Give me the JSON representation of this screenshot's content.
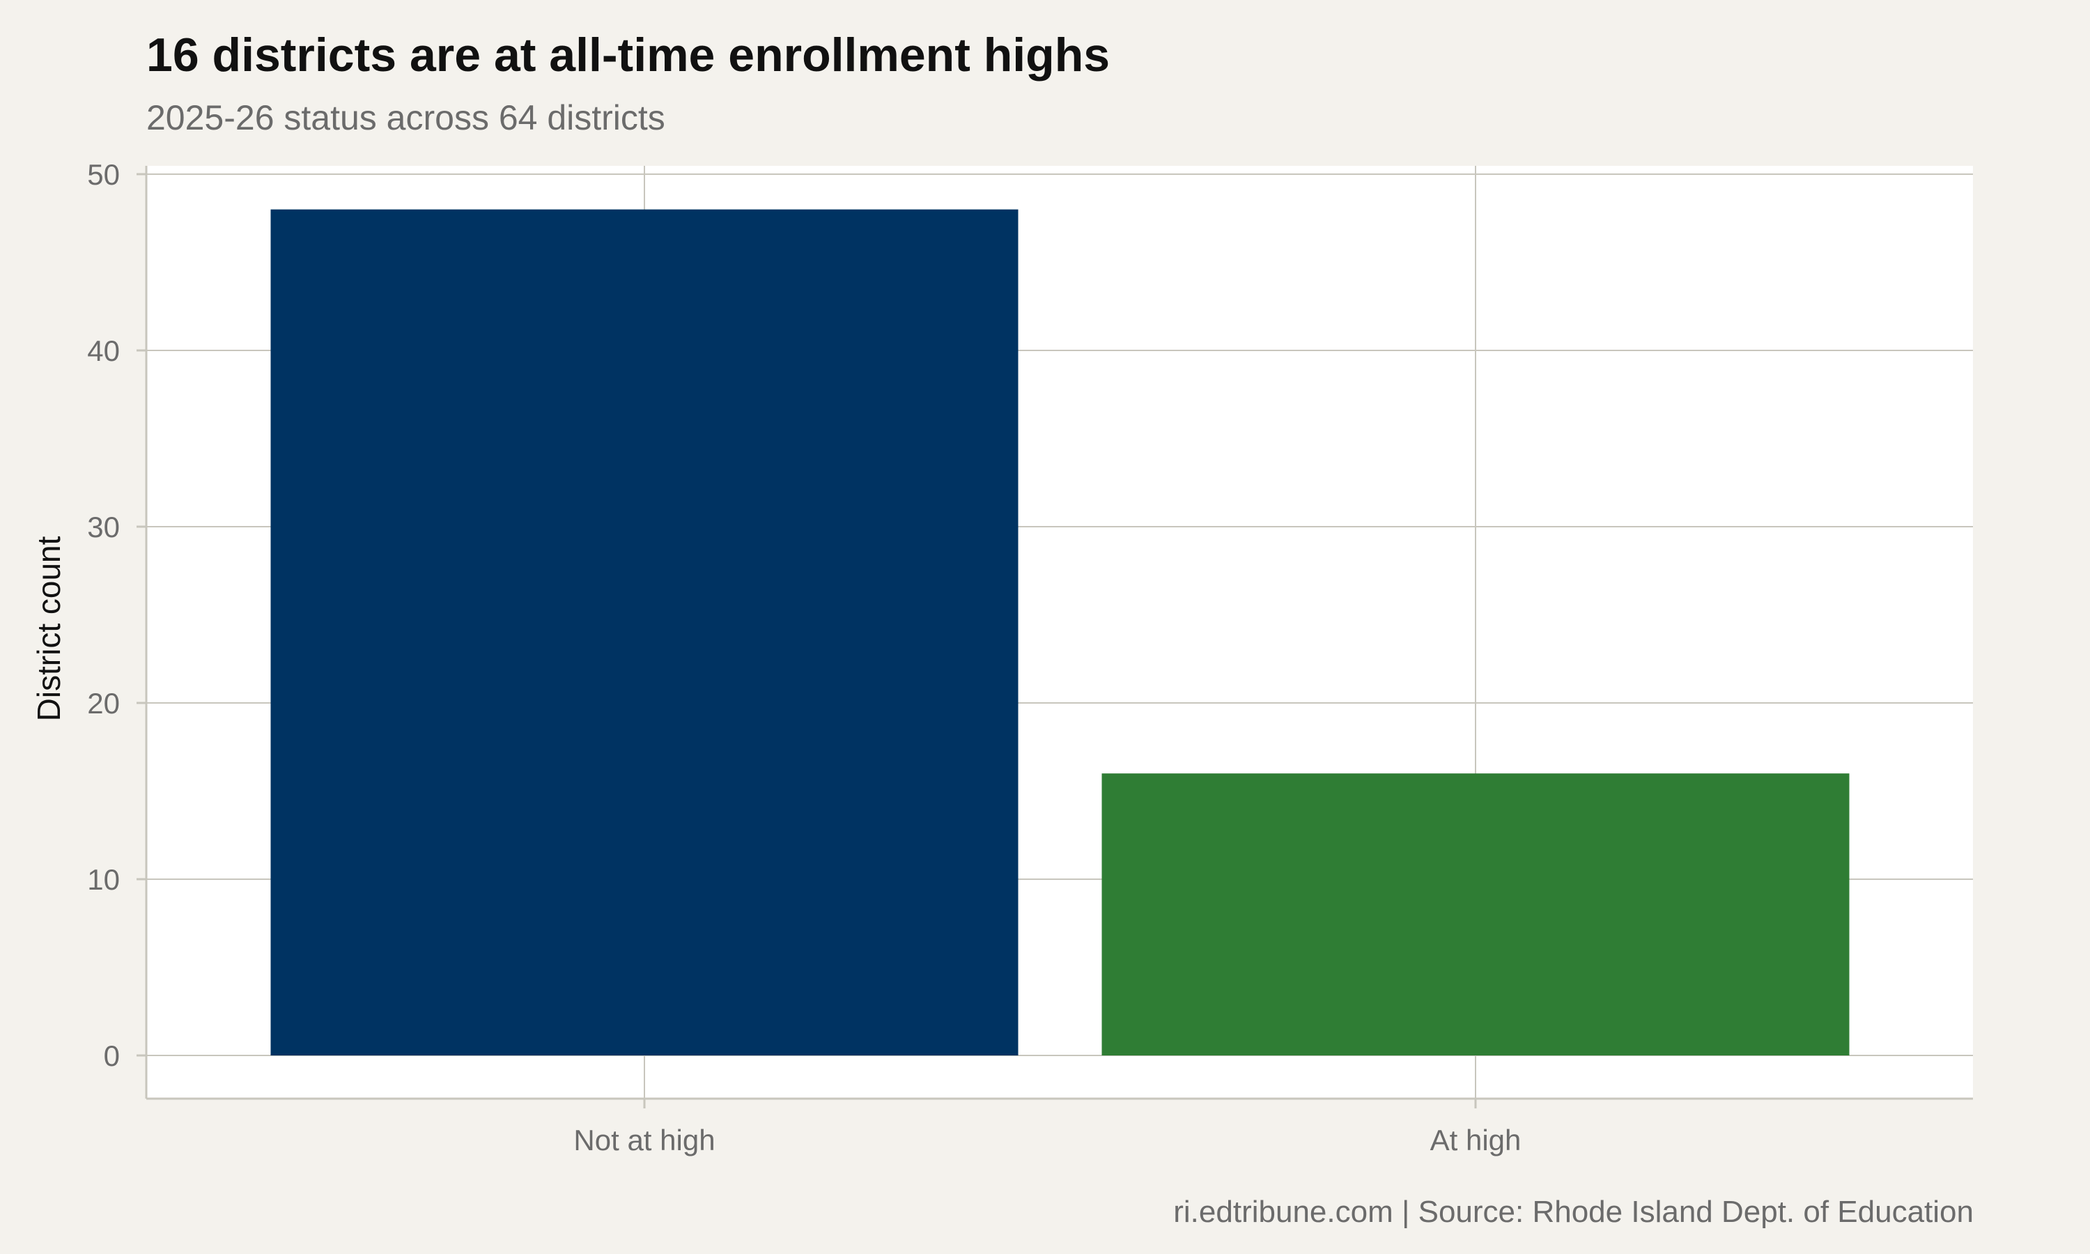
{
  "title": "16 districts are at all-time enrollment highs",
  "subtitle": "2025-26 status across 64 districts",
  "caption": "ri.edtribune.com | Source: Rhode Island Dept. of Education",
  "colors": {
    "background": "#f4f2ed",
    "panel": "#ffffff",
    "grid": "#c8c6bd",
    "not_at_high": "#003362",
    "at_high": "#2f7d34"
  },
  "chart_data": {
    "type": "bar",
    "title": "16 districts are at all-time enrollment highs",
    "subtitle": "2025-26 status across 64 districts",
    "categories": [
      "Not at high",
      "At high"
    ],
    "values": [
      48,
      16
    ],
    "bar_colors": [
      "#003362",
      "#2f7d34"
    ],
    "xlabel": "",
    "ylabel": "District count",
    "ylim": [
      0,
      50
    ],
    "yticks": [
      0,
      10,
      20,
      30,
      40,
      50
    ],
    "grid": true,
    "legend": "none"
  }
}
